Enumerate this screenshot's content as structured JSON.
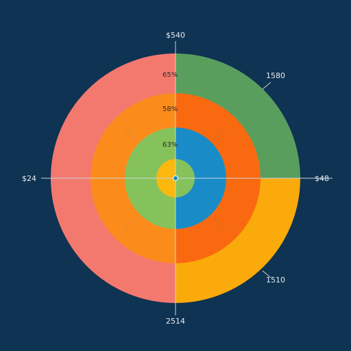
{
  "chart_data": {
    "type": "pie",
    "title": "",
    "colors": {
      "background": "#0f3352",
      "red": "#f3796f",
      "green": "#5a9e5e",
      "orange": "#fb8c1c",
      "orange_dark": "#f96a10",
      "yellow": "#fbaa0b",
      "light_green": "#86c25c",
      "blue": "#198cc7",
      "gold": "#fbb80f",
      "axis": "#c9d6df"
    },
    "rings": [
      {
        "name": "outer",
        "slices": [
          {
            "label": "red",
            "start": 180,
            "end": 360,
            "color": "#f3796f"
          },
          {
            "label": "green",
            "start": 0,
            "end": 90,
            "color": "#5a9e5e"
          },
          {
            "label": "yellow",
            "start": 90,
            "end": 180,
            "color": "#fbaa0b"
          }
        ]
      },
      {
        "name": "middle",
        "slices": [
          {
            "label": "orange",
            "start": 180,
            "end": 360,
            "color": "#fb8c1c"
          },
          {
            "label": "orange-dark",
            "start": 0,
            "end": 180,
            "color": "#f96a10"
          }
        ]
      },
      {
        "name": "inner",
        "slices": [
          {
            "label": "light-green",
            "start": 180,
            "end": 360,
            "color": "#86c25c"
          },
          {
            "label": "blue",
            "start": 0,
            "end": 180,
            "color": "#198cc7"
          }
        ]
      },
      {
        "name": "core",
        "slices": [
          {
            "label": "gold",
            "start": 180,
            "end": 360,
            "color": "#fbb80f"
          },
          {
            "label": "core-green",
            "start": 0,
            "end": 180,
            "color": "#86c25c"
          }
        ]
      }
    ],
    "axis_labels": {
      "top": "$540",
      "left": "$24",
      "right": "$48",
      "bottom": "2514",
      "upper_right": "1580",
      "lower_right": "1510"
    },
    "ring_labels": [
      "65%",
      "58%",
      "63%"
    ]
  }
}
